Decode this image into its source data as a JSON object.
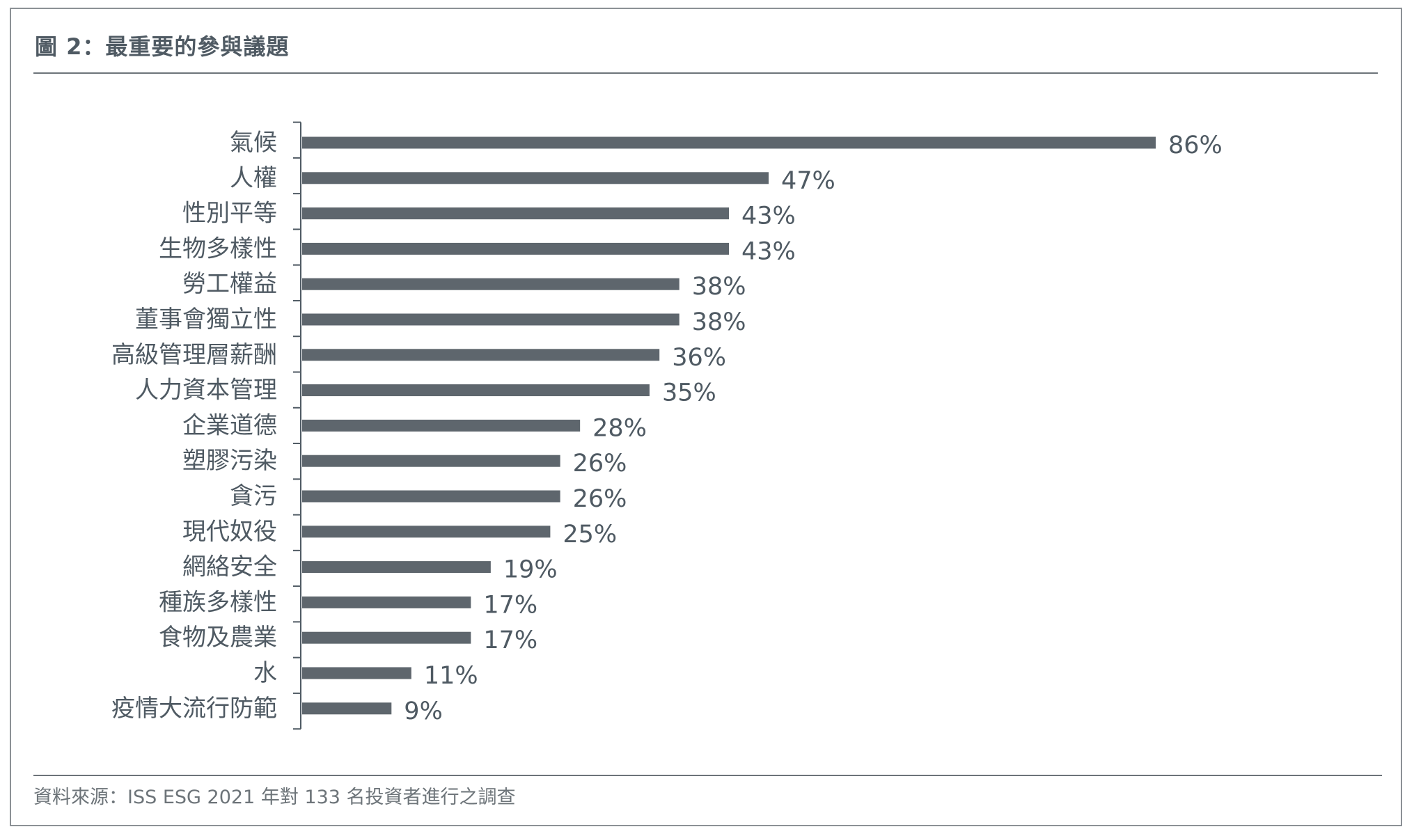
{
  "figure": {
    "title": "圖 2：最重要的參與議題",
    "source": "資料來源：ISS ESG 2021 年對 133 名投資者進行之調查"
  },
  "colors": {
    "bar": "#5e666d",
    "text": "#4f5a63",
    "axis": "#4f5a63",
    "border": "#8c9196"
  },
  "chart_data": {
    "type": "bar",
    "orientation": "horizontal",
    "categories": [
      "氣候",
      "人權",
      "性別平等",
      "生物多樣性",
      "勞工權益",
      "董事會獨立性",
      "高級管理層薪酬",
      "人力資本管理",
      "企業道德",
      "塑膠污染",
      "貪污",
      "現代奴役",
      "網絡安全",
      "種族多樣性",
      "食物及農業",
      "水",
      "疫情大流行防範"
    ],
    "values": [
      86,
      47,
      43,
      43,
      38,
      38,
      36,
      35,
      28,
      26,
      26,
      25,
      19,
      17,
      17,
      11,
      9
    ],
    "value_labels": [
      "86%",
      "47%",
      "43%",
      "43%",
      "38%",
      "38%",
      "36%",
      "35%",
      "28%",
      "26%",
      "26%",
      "25%",
      "19%",
      "17%",
      "17%",
      "11%",
      "9%"
    ],
    "unit": "%",
    "xlim": [
      0,
      86
    ],
    "grid": false,
    "legend": "none"
  }
}
